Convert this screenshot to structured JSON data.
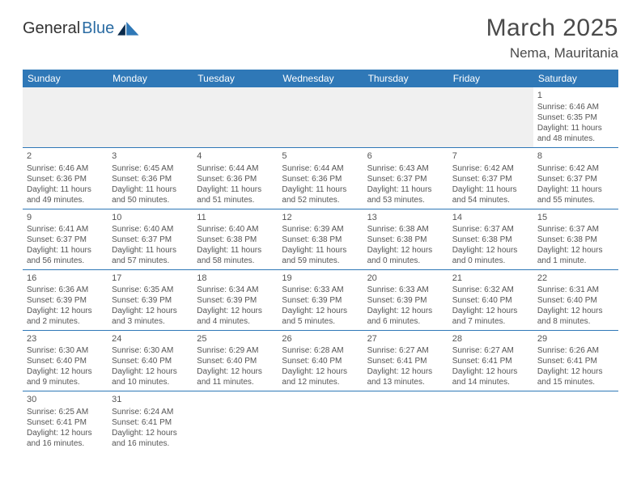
{
  "brand": {
    "part1": "General",
    "part2": "Blue"
  },
  "title": "March 2025",
  "location": "Nema, Mauritania",
  "colors": {
    "header_bg": "#2f78b7",
    "header_text": "#ffffff",
    "grid_line": "#2f78b7",
    "body_text": "#555555",
    "page_bg": "#ffffff",
    "empty_bg": "#f0f0f0"
  },
  "weekdays": [
    "Sunday",
    "Monday",
    "Tuesday",
    "Wednesday",
    "Thursday",
    "Friday",
    "Saturday"
  ],
  "weeks": [
    [
      null,
      null,
      null,
      null,
      null,
      null,
      {
        "n": "1",
        "sr": "Sunrise: 6:46 AM",
        "ss": "Sunset: 6:35 PM",
        "d1": "Daylight: 11 hours",
        "d2": "and 48 minutes."
      }
    ],
    [
      {
        "n": "2",
        "sr": "Sunrise: 6:46 AM",
        "ss": "Sunset: 6:36 PM",
        "d1": "Daylight: 11 hours",
        "d2": "and 49 minutes."
      },
      {
        "n": "3",
        "sr": "Sunrise: 6:45 AM",
        "ss": "Sunset: 6:36 PM",
        "d1": "Daylight: 11 hours",
        "d2": "and 50 minutes."
      },
      {
        "n": "4",
        "sr": "Sunrise: 6:44 AM",
        "ss": "Sunset: 6:36 PM",
        "d1": "Daylight: 11 hours",
        "d2": "and 51 minutes."
      },
      {
        "n": "5",
        "sr": "Sunrise: 6:44 AM",
        "ss": "Sunset: 6:36 PM",
        "d1": "Daylight: 11 hours",
        "d2": "and 52 minutes."
      },
      {
        "n": "6",
        "sr": "Sunrise: 6:43 AM",
        "ss": "Sunset: 6:37 PM",
        "d1": "Daylight: 11 hours",
        "d2": "and 53 minutes."
      },
      {
        "n": "7",
        "sr": "Sunrise: 6:42 AM",
        "ss": "Sunset: 6:37 PM",
        "d1": "Daylight: 11 hours",
        "d2": "and 54 minutes."
      },
      {
        "n": "8",
        "sr": "Sunrise: 6:42 AM",
        "ss": "Sunset: 6:37 PM",
        "d1": "Daylight: 11 hours",
        "d2": "and 55 minutes."
      }
    ],
    [
      {
        "n": "9",
        "sr": "Sunrise: 6:41 AM",
        "ss": "Sunset: 6:37 PM",
        "d1": "Daylight: 11 hours",
        "d2": "and 56 minutes."
      },
      {
        "n": "10",
        "sr": "Sunrise: 6:40 AM",
        "ss": "Sunset: 6:37 PM",
        "d1": "Daylight: 11 hours",
        "d2": "and 57 minutes."
      },
      {
        "n": "11",
        "sr": "Sunrise: 6:40 AM",
        "ss": "Sunset: 6:38 PM",
        "d1": "Daylight: 11 hours",
        "d2": "and 58 minutes."
      },
      {
        "n": "12",
        "sr": "Sunrise: 6:39 AM",
        "ss": "Sunset: 6:38 PM",
        "d1": "Daylight: 11 hours",
        "d2": "and 59 minutes."
      },
      {
        "n": "13",
        "sr": "Sunrise: 6:38 AM",
        "ss": "Sunset: 6:38 PM",
        "d1": "Daylight: 12 hours",
        "d2": "and 0 minutes."
      },
      {
        "n": "14",
        "sr": "Sunrise: 6:37 AM",
        "ss": "Sunset: 6:38 PM",
        "d1": "Daylight: 12 hours",
        "d2": "and 0 minutes."
      },
      {
        "n": "15",
        "sr": "Sunrise: 6:37 AM",
        "ss": "Sunset: 6:38 PM",
        "d1": "Daylight: 12 hours",
        "d2": "and 1 minute."
      }
    ],
    [
      {
        "n": "16",
        "sr": "Sunrise: 6:36 AM",
        "ss": "Sunset: 6:39 PM",
        "d1": "Daylight: 12 hours",
        "d2": "and 2 minutes."
      },
      {
        "n": "17",
        "sr": "Sunrise: 6:35 AM",
        "ss": "Sunset: 6:39 PM",
        "d1": "Daylight: 12 hours",
        "d2": "and 3 minutes."
      },
      {
        "n": "18",
        "sr": "Sunrise: 6:34 AM",
        "ss": "Sunset: 6:39 PM",
        "d1": "Daylight: 12 hours",
        "d2": "and 4 minutes."
      },
      {
        "n": "19",
        "sr": "Sunrise: 6:33 AM",
        "ss": "Sunset: 6:39 PM",
        "d1": "Daylight: 12 hours",
        "d2": "and 5 minutes."
      },
      {
        "n": "20",
        "sr": "Sunrise: 6:33 AM",
        "ss": "Sunset: 6:39 PM",
        "d1": "Daylight: 12 hours",
        "d2": "and 6 minutes."
      },
      {
        "n": "21",
        "sr": "Sunrise: 6:32 AM",
        "ss": "Sunset: 6:40 PM",
        "d1": "Daylight: 12 hours",
        "d2": "and 7 minutes."
      },
      {
        "n": "22",
        "sr": "Sunrise: 6:31 AM",
        "ss": "Sunset: 6:40 PM",
        "d1": "Daylight: 12 hours",
        "d2": "and 8 minutes."
      }
    ],
    [
      {
        "n": "23",
        "sr": "Sunrise: 6:30 AM",
        "ss": "Sunset: 6:40 PM",
        "d1": "Daylight: 12 hours",
        "d2": "and 9 minutes."
      },
      {
        "n": "24",
        "sr": "Sunrise: 6:30 AM",
        "ss": "Sunset: 6:40 PM",
        "d1": "Daylight: 12 hours",
        "d2": "and 10 minutes."
      },
      {
        "n": "25",
        "sr": "Sunrise: 6:29 AM",
        "ss": "Sunset: 6:40 PM",
        "d1": "Daylight: 12 hours",
        "d2": "and 11 minutes."
      },
      {
        "n": "26",
        "sr": "Sunrise: 6:28 AM",
        "ss": "Sunset: 6:40 PM",
        "d1": "Daylight: 12 hours",
        "d2": "and 12 minutes."
      },
      {
        "n": "27",
        "sr": "Sunrise: 6:27 AM",
        "ss": "Sunset: 6:41 PM",
        "d1": "Daylight: 12 hours",
        "d2": "and 13 minutes."
      },
      {
        "n": "28",
        "sr": "Sunrise: 6:27 AM",
        "ss": "Sunset: 6:41 PM",
        "d1": "Daylight: 12 hours",
        "d2": "and 14 minutes."
      },
      {
        "n": "29",
        "sr": "Sunrise: 6:26 AM",
        "ss": "Sunset: 6:41 PM",
        "d1": "Daylight: 12 hours",
        "d2": "and 15 minutes."
      }
    ],
    [
      {
        "n": "30",
        "sr": "Sunrise: 6:25 AM",
        "ss": "Sunset: 6:41 PM",
        "d1": "Daylight: 12 hours",
        "d2": "and 16 minutes."
      },
      {
        "n": "31",
        "sr": "Sunrise: 6:24 AM",
        "ss": "Sunset: 6:41 PM",
        "d1": "Daylight: 12 hours",
        "d2": "and 16 minutes."
      },
      null,
      null,
      null,
      null,
      null
    ]
  ]
}
